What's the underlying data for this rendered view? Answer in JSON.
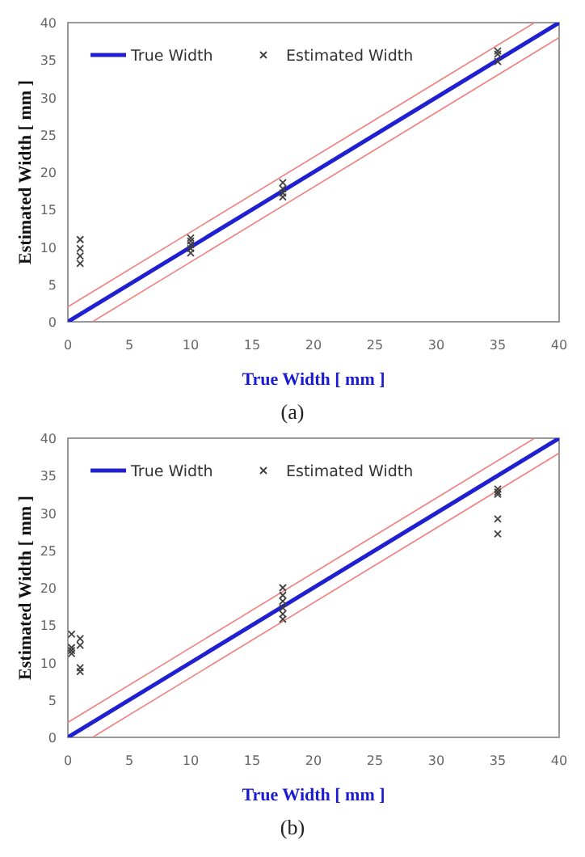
{
  "chart_data": [
    {
      "type": "scatter",
      "xlabel": "True  Width [ mm ]",
      "ylabel": "Estimated  Width [ mm ]",
      "xlim": [
        0,
        40
      ],
      "ylim": [
        0,
        40
      ],
      "xticks": [
        0,
        5,
        10,
        15,
        20,
        25,
        30,
        35,
        40
      ],
      "yticks": [
        0,
        5,
        10,
        15,
        20,
        25,
        30,
        35,
        40
      ],
      "grid": false,
      "legend": "top left",
      "annotations": [
        "(a)"
      ],
      "series": [
        {
          "name": "True Width",
          "type": "line",
          "color": "#2020d0",
          "line_style": "solid",
          "x": [
            0,
            40
          ],
          "values": [
            0,
            40
          ]
        },
        {
          "type": "line",
          "color": "#f08080",
          "line_style": "solid",
          "x": [
            0,
            38
          ],
          "values": [
            2,
            40
          ]
        },
        {
          "type": "line",
          "color": "#f08080",
          "line_style": "solid",
          "x": [
            2,
            40
          ],
          "values": [
            0,
            38
          ]
        },
        {
          "name": "Estimated Width",
          "color": "#404040",
          "marker": "cross",
          "x": [
            1,
            1,
            1,
            1,
            10,
            10,
            10,
            10,
            10,
            17.5,
            17.5,
            17.5,
            17.5,
            35,
            35,
            35
          ],
          "values": [
            7.8,
            8.8,
            9.8,
            11,
            9.2,
            9.8,
            10.3,
            10.8,
            11.2,
            16.7,
            17.2,
            17.8,
            18.6,
            34.8,
            35.8,
            36.2
          ]
        }
      ]
    },
    {
      "type": "scatter",
      "xlabel": "True  Width [ mm ]",
      "ylabel": "Estimated  Width [ mm ]",
      "xlim": [
        0,
        40
      ],
      "ylim": [
        0,
        40
      ],
      "xticks": [
        0,
        5,
        10,
        15,
        20,
        25,
        30,
        35,
        40
      ],
      "yticks": [
        0,
        5,
        10,
        15,
        20,
        25,
        30,
        35,
        40
      ],
      "grid": false,
      "legend": "top left",
      "annotations": [
        "(b)"
      ],
      "series": [
        {
          "name": "True Width",
          "type": "line",
          "color": "#2020d0",
          "line_style": "solid",
          "x": [
            0,
            40
          ],
          "values": [
            0,
            40
          ]
        },
        {
          "type": "line",
          "color": "#f08080",
          "line_style": "solid",
          "x": [
            0,
            38
          ],
          "values": [
            2,
            40
          ]
        },
        {
          "type": "line",
          "color": "#f08080",
          "line_style": "solid",
          "x": [
            2,
            40
          ],
          "values": [
            0,
            38
          ]
        },
        {
          "name": "Estimated Width",
          "color": "#404040",
          "marker": "cross",
          "x": [
            0.3,
            0.3,
            0.3,
            0.3,
            1,
            1,
            1,
            1,
            17.5,
            17.5,
            17.5,
            17.5,
            17.5,
            17.5,
            35,
            35,
            35,
            35,
            35
          ],
          "values": [
            11.2,
            11.6,
            12,
            13.8,
            8.8,
            9.3,
            12.3,
            13.2,
            15.8,
            16.5,
            17.3,
            18.2,
            19,
            20,
            27.2,
            29.2,
            32.5,
            32.8,
            33.2
          ]
        }
      ]
    }
  ]
}
